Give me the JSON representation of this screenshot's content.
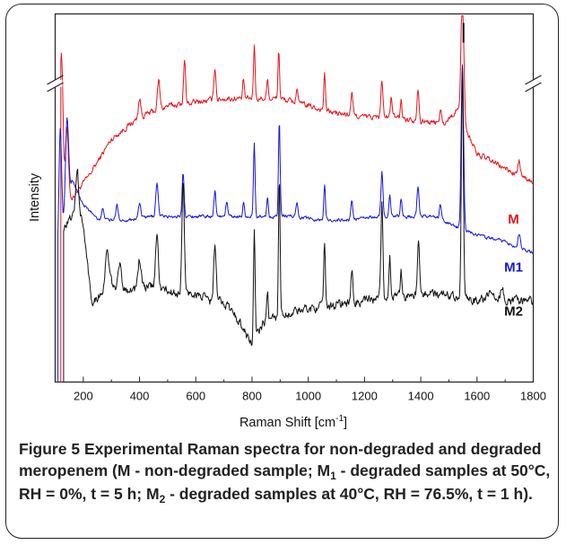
{
  "chart_data": {
    "type": "line",
    "xlabel_main": "Raman Shift [cm",
    "xlabel_sup": "-1",
    "xlabel_end": "]",
    "ylabel": "Intensity",
    "xlim": [
      100,
      1800
    ],
    "xticks": [
      200,
      400,
      600,
      800,
      1000,
      1200,
      1400,
      1600,
      1800
    ],
    "xtick_labels": [
      "200",
      "400",
      "600",
      "800",
      "1000",
      "1200",
      "1400",
      "1600",
      "1800"
    ],
    "grid": false,
    "y_axis_break": true,
    "series": [
      {
        "name": "M",
        "color": "#e8141b",
        "baseline": [
          [
            120,
            0.52
          ],
          [
            160,
            0.5
          ],
          [
            220,
            0.56
          ],
          [
            300,
            0.66
          ],
          [
            400,
            0.72
          ],
          [
            500,
            0.75
          ],
          [
            600,
            0.76
          ],
          [
            700,
            0.77
          ],
          [
            800,
            0.77
          ],
          [
            900,
            0.77
          ],
          [
            1000,
            0.75
          ],
          [
            1100,
            0.73
          ],
          [
            1200,
            0.72
          ],
          [
            1300,
            0.72
          ],
          [
            1400,
            0.71
          ],
          [
            1480,
            0.7
          ],
          [
            1530,
            0.74
          ],
          [
            1600,
            0.62
          ],
          [
            1700,
            0.58
          ],
          [
            1800,
            0.54
          ]
        ],
        "peaks": [
          [
            122,
            0.38,
            8
          ],
          [
            142,
            0.18,
            7
          ],
          [
            400,
            0.05,
            6
          ],
          [
            468,
            0.08,
            6
          ],
          [
            560,
            0.12,
            5
          ],
          [
            668,
            0.09,
            5
          ],
          [
            770,
            0.05,
            4
          ],
          [
            808,
            0.15,
            4
          ],
          [
            855,
            0.06,
            4
          ],
          [
            895,
            0.13,
            4
          ],
          [
            960,
            0.04,
            5
          ],
          [
            1058,
            0.1,
            4
          ],
          [
            1155,
            0.06,
            5
          ],
          [
            1262,
            0.1,
            5
          ],
          [
            1295,
            0.06,
            4
          ],
          [
            1330,
            0.05,
            4
          ],
          [
            1390,
            0.09,
            5
          ],
          [
            1470,
            0.04,
            5
          ],
          [
            1548,
            0.35,
            7
          ],
          [
            1750,
            0.04,
            6
          ]
        ],
        "noise": 0.014
      },
      {
        "name": "M1",
        "color": "#1515d8",
        "baseline": [
          [
            110,
            0.32
          ],
          [
            160,
            0.55
          ],
          [
            200,
            0.48
          ],
          [
            260,
            0.44
          ],
          [
            350,
            0.44
          ],
          [
            450,
            0.45
          ],
          [
            550,
            0.45
          ],
          [
            650,
            0.45
          ],
          [
            750,
            0.45
          ],
          [
            850,
            0.45
          ],
          [
            950,
            0.45
          ],
          [
            1050,
            0.44
          ],
          [
            1150,
            0.44
          ],
          [
            1250,
            0.45
          ],
          [
            1350,
            0.45
          ],
          [
            1450,
            0.45
          ],
          [
            1500,
            0.43
          ],
          [
            1600,
            0.4
          ],
          [
            1700,
            0.38
          ],
          [
            1800,
            0.35
          ]
        ],
        "peaks": [
          [
            118,
            0.33,
            7
          ],
          [
            142,
            0.25,
            8
          ],
          [
            270,
            0.03,
            6
          ],
          [
            320,
            0.04,
            6
          ],
          [
            400,
            0.04,
            6
          ],
          [
            462,
            0.09,
            6
          ],
          [
            555,
            0.12,
            5
          ],
          [
            668,
            0.07,
            5
          ],
          [
            710,
            0.04,
            5
          ],
          [
            770,
            0.04,
            4
          ],
          [
            808,
            0.2,
            4
          ],
          [
            855,
            0.05,
            4
          ],
          [
            897,
            0.26,
            4
          ],
          [
            960,
            0.04,
            5
          ],
          [
            1058,
            0.1,
            4
          ],
          [
            1155,
            0.05,
            5
          ],
          [
            1262,
            0.12,
            5
          ],
          [
            1290,
            0.06,
            4
          ],
          [
            1330,
            0.05,
            4
          ],
          [
            1390,
            0.08,
            5
          ],
          [
            1470,
            0.04,
            5
          ],
          [
            1548,
            0.45,
            6
          ],
          [
            1750,
            0.04,
            6
          ]
        ],
        "noise": 0.008
      },
      {
        "name": "M2",
        "color": "#111111",
        "baseline": [
          [
            130,
            0.42
          ],
          [
            160,
            0.45
          ],
          [
            180,
            0.5
          ],
          [
            200,
            0.42
          ],
          [
            230,
            0.22
          ],
          [
            300,
            0.26
          ],
          [
            380,
            0.25
          ],
          [
            450,
            0.26
          ],
          [
            520,
            0.24
          ],
          [
            600,
            0.24
          ],
          [
            650,
            0.22
          ],
          [
            700,
            0.22
          ],
          [
            760,
            0.16
          ],
          [
            800,
            0.1
          ],
          [
            840,
            0.16
          ],
          [
            900,
            0.18
          ],
          [
            1000,
            0.2
          ],
          [
            1100,
            0.21
          ],
          [
            1200,
            0.22
          ],
          [
            1300,
            0.23
          ],
          [
            1400,
            0.24
          ],
          [
            1500,
            0.24
          ],
          [
            1600,
            0.22
          ],
          [
            1650,
            0.24
          ],
          [
            1700,
            0.22
          ],
          [
            1800,
            0.22
          ]
        ],
        "peaks": [
          [
            178,
            0.08,
            6
          ],
          [
            285,
            0.1,
            10
          ],
          [
            330,
            0.06,
            8
          ],
          [
            400,
            0.08,
            8
          ],
          [
            462,
            0.14,
            7
          ],
          [
            555,
            0.3,
            6
          ],
          [
            668,
            0.15,
            6
          ],
          [
            808,
            0.3,
            4
          ],
          [
            855,
            0.08,
            4
          ],
          [
            897,
            0.38,
            4
          ],
          [
            1058,
            0.17,
            4
          ],
          [
            1155,
            0.08,
            5
          ],
          [
            1262,
            0.25,
            5
          ],
          [
            1290,
            0.12,
            4
          ],
          [
            1330,
            0.08,
            4
          ],
          [
            1392,
            0.14,
            5
          ],
          [
            1548,
            0.62,
            5
          ],
          [
            1690,
            0.04,
            6
          ]
        ],
        "noise": 0.022
      }
    ]
  },
  "figure_label": "Figure 5",
  "caption_part1": " Experimental Raman spectra for non-degraded and degraded meropenem (M - non-degraded sample; M",
  "caption_sub1": "1",
  "caption_part2": " - degraded samples at 50°C, RH = 0%, t = 5 h; M",
  "caption_sub2": "2",
  "caption_part3": " - degraded samples at 40°C, RH = 76.5%, t = 1 h)."
}
